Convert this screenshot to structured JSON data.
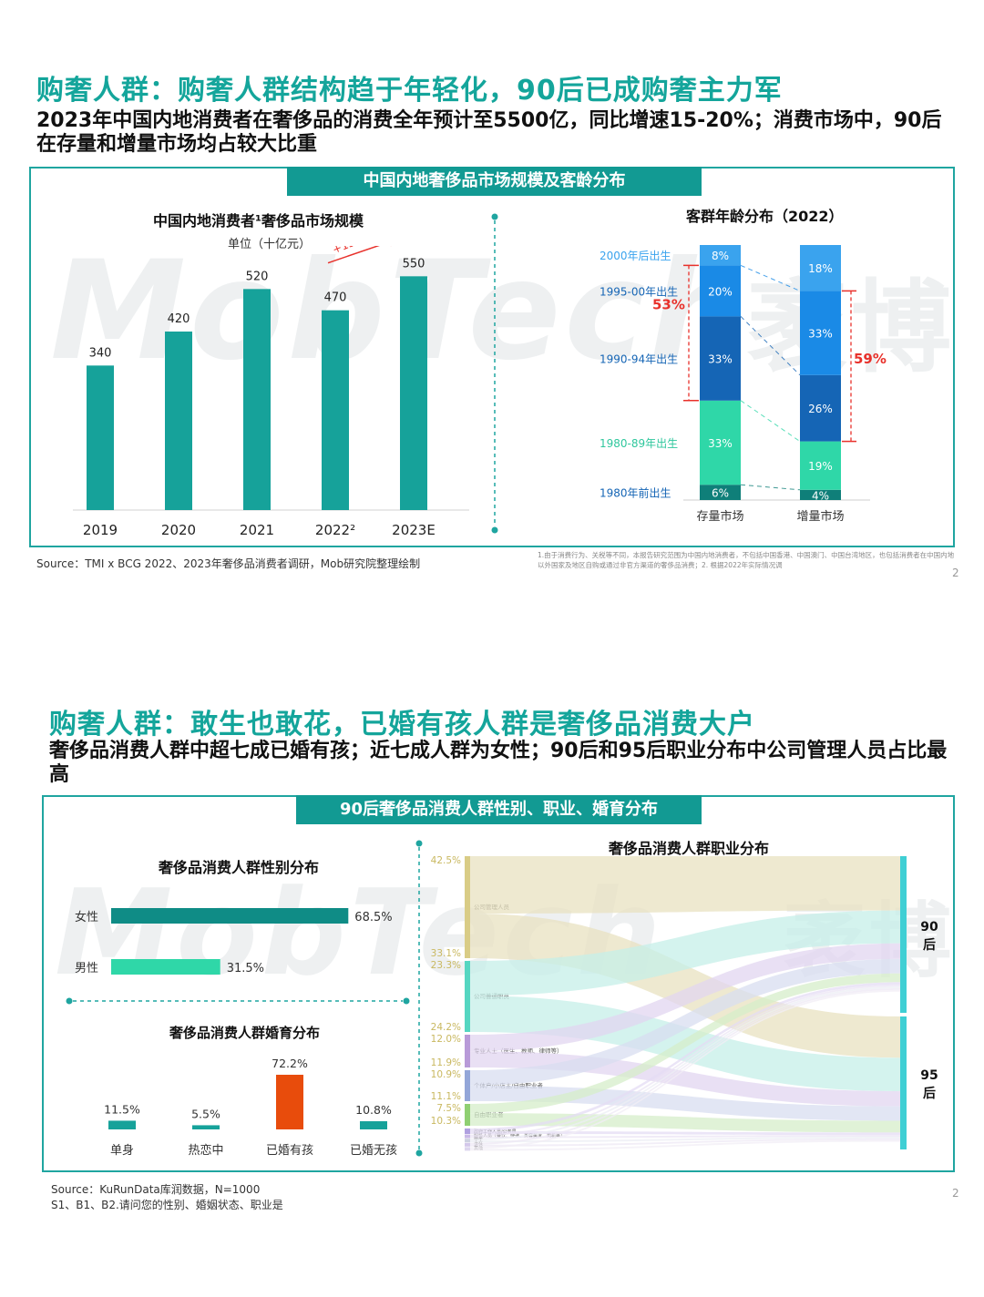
{
  "watermark": {
    "text": "MobTech",
    "cn": "袤博"
  },
  "slide1": {
    "title": "购奢人群：购奢人群结构趋于年轻化，90后已成购奢主力军",
    "subtitle": "2023年中国内地消费者在奢侈品的消费全年预计至5500亿，同比增速15-20%；消费市场中，90后在存量和增量市场均占较大比重",
    "banner": "中国内地奢侈品市场规模及客龄分布",
    "market_title": "中国内地消费者¹奢侈品市场规模",
    "market_unit": "单位（十亿元）",
    "growth_label": "+15-20%",
    "age_title": "客群年龄分布（2022）",
    "source": "Source：TMI x BCG 2022、2023年奢侈品消费者调研，Mob研究院整理绘制",
    "note": "1.由于消费行为、关税等不同，本报告研究范围为中国内地消费者，不包括中国香港、中国澳门、中国台湾地区，也包括消费者在中国内地以外国家及地区自购或通过非官方渠道的奢侈品消费；2. 根据2022年实际情况调",
    "page": "2",
    "colors": {
      "teal": "#16a29a",
      "dark_blue": "#1565b5",
      "mid_blue": "#1a8ae6",
      "light_blue": "#3aa3ee",
      "green": "#2fd7a8",
      "dark_teal": "#0f7f79",
      "red": "#e8312b"
    }
  },
  "chart_data": [
    {
      "type": "bar",
      "title": "中国内地消费者¹奢侈品市场规模",
      "ylabel": "单位（十亿元）",
      "categories": [
        "2019",
        "2020",
        "2021",
        "2022²",
        "2023E"
      ],
      "values": [
        340,
        420,
        520,
        470,
        550
      ],
      "annotation": "+15-20%",
      "ylim": [
        0,
        600
      ]
    },
    {
      "type": "bar",
      "stacked": true,
      "title": "客群年龄分布（2022）",
      "categories": [
        "存量市场",
        "增量市场"
      ],
      "series": [
        {
          "name": "1980年前出生",
          "values": [
            6,
            4
          ]
        },
        {
          "name": "1980-89年出生",
          "values": [
            33,
            19
          ]
        },
        {
          "name": "1990-94年出生",
          "values": [
            33,
            26
          ]
        },
        {
          "name": "1995-00年出生",
          "values": [
            20,
            33
          ]
        },
        {
          "name": "2000年后出生",
          "values": [
            8,
            18
          ]
        }
      ],
      "brackets": [
        {
          "bar": "存量市场",
          "label": "53%"
        },
        {
          "bar": "增量市场",
          "label": "59%"
        }
      ]
    },
    {
      "type": "bar",
      "orientation": "horizontal",
      "title": "奢侈品消费人群性别分布",
      "categories": [
        "女性",
        "男性"
      ],
      "values": [
        68.5,
        31.5
      ],
      "value_labels": [
        "68.5%",
        "31.5%"
      ],
      "unit": "%"
    },
    {
      "type": "bar",
      "title": "奢侈品消费人群婚育分布",
      "categories": [
        "单身",
        "热恋中",
        "已婚有孩",
        "已婚无孩"
      ],
      "values": [
        11.5,
        5.5,
        72.2,
        10.8
      ],
      "value_labels": [
        "11.5%",
        "5.5%",
        "72.2%",
        "10.8%"
      ],
      "unit": "%"
    },
    {
      "type": "sankey",
      "title": "奢侈品消费人群职业分布",
      "targets": [
        "90后",
        "95后"
      ],
      "nodes": [
        {
          "label": "公司管理人员",
          "values": [
            42.5,
            33.1
          ],
          "value_labels": [
            "42.5%",
            "33.1%"
          ]
        },
        {
          "label": "公司普通职员",
          "values": [
            23.3,
            24.2
          ],
          "value_labels": [
            "23.3%",
            "24.2%"
          ]
        },
        {
          "label": "专业人士（医生、教师、律师等）",
          "values": [
            12.0,
            11.9
          ],
          "value_labels": [
            "12.0%",
            "11.9%"
          ]
        },
        {
          "label": "个体户/小店主/自由职业者",
          "values": [
            10.9,
            11.1
          ],
          "value_labels": [
            "10.9%",
            "11.1%"
          ]
        },
        {
          "label": "自由职业者",
          "values": [
            7.5,
            10.3
          ],
          "value_labels": [
            "7.5%",
            "10.3%"
          ]
        },
        {
          "label": "政府工作人员/公务员",
          "values": [],
          "value_labels": []
        },
        {
          "label": "服务人员（餐饮、快递、美容美发、司机等）",
          "values": [],
          "value_labels": []
        },
        {
          "label": "学生",
          "values": [],
          "value_labels": []
        },
        {
          "label": "退休",
          "values": [],
          "value_labels": []
        },
        {
          "label": "其他",
          "values": [],
          "value_labels": []
        }
      ]
    }
  ],
  "slide2": {
    "title": "购奢人群：敢生也敢花，已婚有孩人群是奢侈品消费大户",
    "subtitle": "奢侈品消费人群中超七成已婚有孩；近七成人群为女性；90后和95后职业分布中公司管理人员占比最高",
    "banner": "90后奢侈品消费人群性别、职业、婚育分布",
    "gender_title": "奢侈品消费人群性别分布",
    "marriage_title": "奢侈品消费人群婚育分布",
    "career_title": "奢侈品消费人群职业分布",
    "source_line1": "Source：KuRunData库润数据，N=1000",
    "source_line2": "S1、B1、B2.请问您的性别、婚姻状态、职业是",
    "page": "2"
  }
}
